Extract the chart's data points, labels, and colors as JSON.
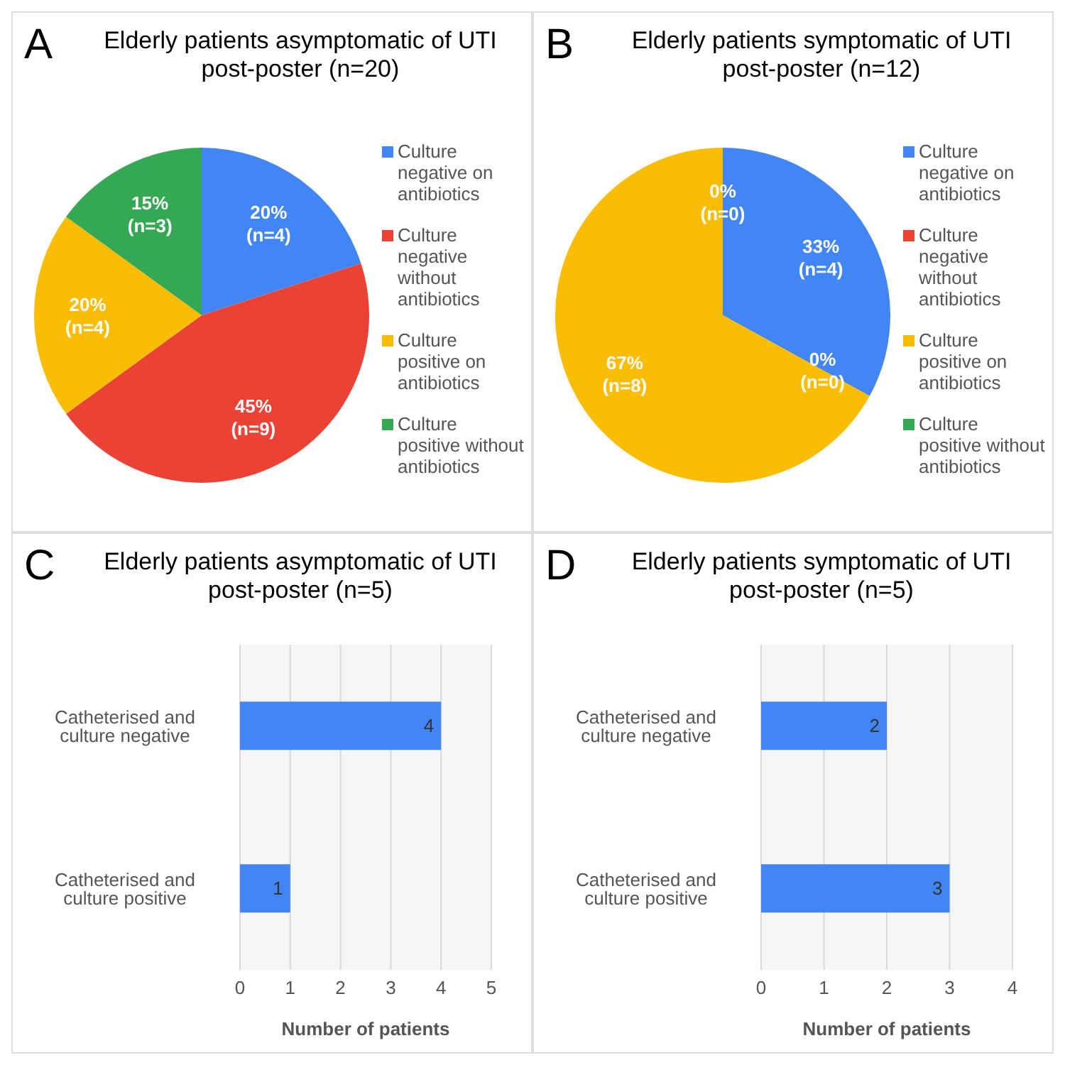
{
  "chart_data": [
    {
      "type": "pie",
      "title": "Elderly patients asymptomatic of UTI post-poster (n=20)",
      "annotations": [
        "A"
      ],
      "categories": [
        "Culture negative on antibiotics",
        "Culture negative without antibiotics",
        "Culture positive on antibiotics",
        "Culture positive without antibiotics"
      ],
      "values": [
        20,
        45,
        20,
        15
      ],
      "value_labels": [
        "20% (n=4)",
        "45% (n=9)",
        "20% (n=4)",
        "15% (n=3)"
      ],
      "colors": [
        "#4285f4",
        "#ea4335",
        "#fbbc04",
        "#34a853"
      ],
      "legend": "right"
    },
    {
      "type": "pie",
      "title": "Elderly patients symptomatic of UTI post-poster (n=12)",
      "annotations": [
        "B"
      ],
      "categories": [
        "Culture negative on antibiotics",
        "Culture negative without antibiotics",
        "Culture positive on antibiotics",
        "Culture positive without antibiotics"
      ],
      "values": [
        33,
        0,
        67,
        0
      ],
      "value_labels": [
        "33% (n=4)",
        "0% (n=0)",
        "67% (n=8)",
        "0% (n=0)"
      ],
      "colors": [
        "#4285f4",
        "#ea4335",
        "#fbbc04",
        "#34a853"
      ],
      "legend": "right"
    },
    {
      "type": "bar",
      "orientation": "horizontal",
      "title": "Elderly patients asymptomatic of UTI post-poster (n=5)",
      "annotations": [
        "C"
      ],
      "categories": [
        "Catheterised and culture negative",
        "Catheterised and culture positive"
      ],
      "values": [
        4,
        1
      ],
      "color": "#4285f4",
      "xlabel": "Number of patients",
      "xlim": [
        0,
        5
      ],
      "xticks": [
        0,
        1,
        2,
        3,
        4,
        5
      ],
      "grid": "x",
      "data_labels": true
    },
    {
      "type": "bar",
      "orientation": "horizontal",
      "title": "Elderly patients symptomatic of UTI post-poster (n=5)",
      "annotations": [
        "D"
      ],
      "categories": [
        "Catheterised and culture negative",
        "Catheterised and culture positive"
      ],
      "values": [
        2,
        3
      ],
      "color": "#4285f4",
      "xlabel": "Number of patients",
      "xlim": [
        0,
        4
      ],
      "xticks": [
        0,
        1,
        2,
        3,
        4
      ],
      "grid": "x",
      "data_labels": true
    }
  ]
}
